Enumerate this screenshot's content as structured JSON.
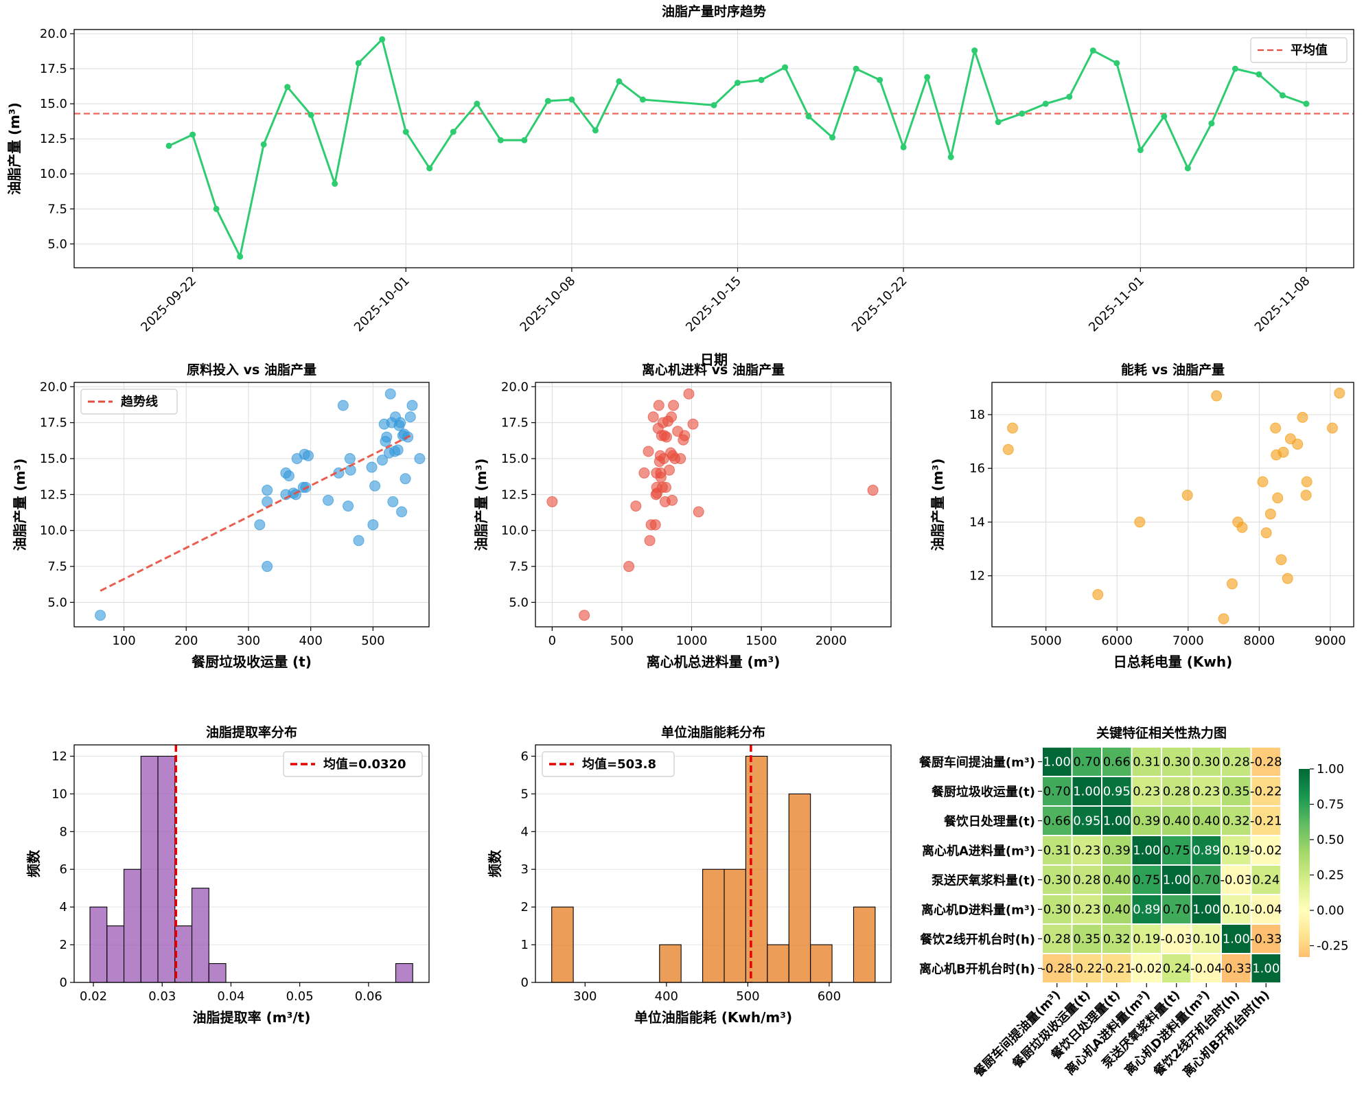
{
  "chart_data": [
    {
      "id": "ts",
      "type": "line",
      "title": "油脂产量时序趋势",
      "xlabel": "日期",
      "ylabel": "油脂产量 (m³)",
      "ylim": [
        3.3,
        20.3
      ],
      "yticks": [
        5.0,
        7.5,
        10.0,
        12.5,
        15.0,
        17.5,
        20.0
      ],
      "xticks": [
        "2025-09-22",
        "2025-10-01",
        "2025-10-08",
        "2025-10-15",
        "2025-10-22",
        "2025-11-01",
        "2025-11-08"
      ],
      "x": [
        "2025-09-21",
        "2025-09-22",
        "2025-09-23",
        "2025-09-24",
        "2025-09-25",
        "2025-09-26",
        "2025-09-27",
        "2025-09-28",
        "2025-09-29",
        "2025-09-30",
        "2025-10-01",
        "2025-10-02",
        "2025-10-03",
        "2025-10-04",
        "2025-10-05",
        "2025-10-06",
        "2025-10-07",
        "2025-10-08",
        "2025-10-09",
        "2025-10-10",
        "2025-10-11",
        "2025-10-14",
        "2025-10-15",
        "2025-10-16",
        "2025-10-17",
        "2025-10-18",
        "2025-10-19",
        "2025-10-20",
        "2025-10-21",
        "2025-10-22",
        "2025-10-23",
        "2025-10-24",
        "2025-10-25",
        "2025-10-26",
        "2025-10-27",
        "2025-10-28",
        "2025-10-29",
        "2025-10-30",
        "2025-10-31",
        "2025-11-01",
        "2025-11-02",
        "2025-11-03",
        "2025-11-04",
        "2025-11-05",
        "2025-11-06",
        "2025-11-07",
        "2025-11-08"
      ],
      "values": [
        12.0,
        12.8,
        7.5,
        4.1,
        12.1,
        16.2,
        14.2,
        9.3,
        17.9,
        19.6,
        13.0,
        10.4,
        13.0,
        15.0,
        12.4,
        12.4,
        15.2,
        15.3,
        13.1,
        16.6,
        15.3,
        14.9,
        16.5,
        16.7,
        17.6,
        14.1,
        12.6,
        17.5,
        16.7,
        11.9,
        16.9,
        11.2,
        18.8,
        13.7,
        14.3,
        15.0,
        15.5,
        18.8,
        17.9,
        11.7,
        14.1,
        10.4,
        13.6,
        17.5,
        17.1,
        15.6,
        15.0
      ],
      "mean": 14.3,
      "legend": [
        "平均值"
      ],
      "colors": {
        "line": "#2ecc71",
        "mean": "#e74c3c"
      }
    },
    {
      "id": "sc1",
      "type": "scatter",
      "title": "原料投入 vs 油脂产量",
      "xlabel": "餐厨垃圾收运量 (t)",
      "ylabel": "油脂产量 (m³)",
      "xlim": [
        20,
        590
      ],
      "ylim": [
        3.3,
        20.3
      ],
      "xticks": [
        100,
        200,
        300,
        400,
        500
      ],
      "yticks": [
        5.0,
        7.5,
        10.0,
        12.5,
        15.0,
        17.5,
        20.0
      ],
      "legend": [
        "趋势线"
      ],
      "trend": [
        [
          62,
          5.8
        ],
        [
          565,
          16.7
        ]
      ],
      "points": [
        [
          62,
          4.1
        ],
        [
          330,
          7.5
        ],
        [
          330,
          12.0
        ],
        [
          330,
          12.8
        ],
        [
          318,
          10.4
        ],
        [
          360,
          12.5
        ],
        [
          360,
          14.0
        ],
        [
          365,
          13.8
        ],
        [
          372,
          12.6
        ],
        [
          376,
          12.5
        ],
        [
          378,
          15.0
        ],
        [
          388,
          13.0
        ],
        [
          390,
          15.3
        ],
        [
          392,
          13.0
        ],
        [
          396,
          15.2
        ],
        [
          428,
          12.1
        ],
        [
          445,
          14.0
        ],
        [
          452,
          18.7
        ],
        [
          460,
          11.7
        ],
        [
          463,
          15.0
        ],
        [
          464,
          14.2
        ],
        [
          477,
          9.3
        ],
        [
          498,
          14.4
        ],
        [
          500,
          10.4
        ],
        [
          503,
          13.1
        ],
        [
          515,
          14.9
        ],
        [
          518,
          17.4
        ],
        [
          520,
          16.2
        ],
        [
          522,
          16.5
        ],
        [
          526,
          15.4
        ],
        [
          528,
          19.5
        ],
        [
          530,
          17.5
        ],
        [
          532,
          12.0
        ],
        [
          535,
          15.5
        ],
        [
          536,
          17.9
        ],
        [
          540,
          15.6
        ],
        [
          542,
          17.3
        ],
        [
          544,
          17.5
        ],
        [
          546,
          11.3
        ],
        [
          548,
          16.6
        ],
        [
          550,
          16.7
        ],
        [
          552,
          13.6
        ],
        [
          556,
          16.5
        ],
        [
          560,
          17.9
        ],
        [
          563,
          18.7
        ],
        [
          575,
          15.0
        ]
      ],
      "colors": {
        "point": "#3498db",
        "trend": "#e74c3c"
      }
    },
    {
      "id": "sc2",
      "type": "scatter",
      "title": "离心机进料 vs 油脂产量",
      "xlabel": "离心机总进料量 (m³)",
      "ylabel": "油脂产量 (m³)",
      "xlim": [
        -120,
        2430
      ],
      "ylim": [
        3.3,
        20.3
      ],
      "xticks": [
        0,
        500,
        1000,
        1500,
        2000
      ],
      "yticks": [
        5.0,
        7.5,
        10.0,
        12.5,
        15.0,
        17.5,
        20.0
      ],
      "points": [
        [
          0,
          12.0
        ],
        [
          230,
          4.1
        ],
        [
          550,
          7.5
        ],
        [
          600,
          11.7
        ],
        [
          660,
          14.0
        ],
        [
          690,
          15.5
        ],
        [
          700,
          9.3
        ],
        [
          710,
          10.4
        ],
        [
          725,
          17.9
        ],
        [
          740,
          10.4
        ],
        [
          745,
          12.5
        ],
        [
          748,
          14.0
        ],
        [
          750,
          13.0
        ],
        [
          752,
          12.6
        ],
        [
          760,
          17.1
        ],
        [
          765,
          18.7
        ],
        [
          770,
          14.8
        ],
        [
          775,
          15.2
        ],
        [
          778,
          14.0
        ],
        [
          780,
          13.7
        ],
        [
          785,
          16.6
        ],
        [
          790,
          13.0
        ],
        [
          795,
          17.5
        ],
        [
          800,
          15.0
        ],
        [
          805,
          16.6
        ],
        [
          810,
          12.0
        ],
        [
          815,
          13.0
        ],
        [
          820,
          16.5
        ],
        [
          830,
          17.6
        ],
        [
          840,
          14.2
        ],
        [
          850,
          15.4
        ],
        [
          855,
          17.9
        ],
        [
          860,
          12.1
        ],
        [
          865,
          15.2
        ],
        [
          870,
          18.7
        ],
        [
          880,
          15.0
        ],
        [
          900,
          16.9
        ],
        [
          920,
          15.0
        ],
        [
          940,
          16.3
        ],
        [
          950,
          16.6
        ],
        [
          980,
          19.5
        ],
        [
          1010,
          17.4
        ],
        [
          1050,
          11.3
        ],
        [
          2300,
          12.8
        ]
      ],
      "colors": {
        "point": "#e74c3c"
      }
    },
    {
      "id": "sc3",
      "type": "scatter",
      "title": "能耗 vs 油脂产量",
      "xlabel": "日总耗电量 (Kwh)",
      "ylabel": "油脂产量 (m³)",
      "xlim": [
        4240,
        9330
      ],
      "ylim": [
        10.1,
        19.2
      ],
      "xticks": [
        5000,
        6000,
        7000,
        8000,
        9000
      ],
      "yticks": [
        12,
        14,
        16,
        18
      ],
      "points": [
        [
          4470,
          16.7
        ],
        [
          4530,
          17.5
        ],
        [
          5730,
          11.3
        ],
        [
          6320,
          14.0
        ],
        [
          6990,
          15.0
        ],
        [
          7400,
          18.7
        ],
        [
          7500,
          10.4
        ],
        [
          7620,
          11.7
        ],
        [
          7700,
          14.0
        ],
        [
          7760,
          13.8
        ],
        [
          8050,
          15.5
        ],
        [
          8100,
          13.6
        ],
        [
          8160,
          14.3
        ],
        [
          8230,
          17.5
        ],
        [
          8240,
          16.5
        ],
        [
          8260,
          14.9
        ],
        [
          8310,
          12.6
        ],
        [
          8340,
          16.6
        ],
        [
          8400,
          11.9
        ],
        [
          8440,
          17.1
        ],
        [
          8540,
          16.9
        ],
        [
          8610,
          17.9
        ],
        [
          8660,
          15.0
        ],
        [
          8670,
          15.5
        ],
        [
          9030,
          17.5
        ],
        [
          9130,
          18.8
        ]
      ],
      "colors": {
        "point": "#f39c12"
      }
    },
    {
      "id": "h1",
      "type": "bar",
      "title": "油脂提取率分布",
      "xlabel": "油脂提取率 (m³/t)",
      "ylabel": "频数",
      "xlim": [
        0.0172,
        0.0688
      ],
      "ylim": [
        0,
        12.6
      ],
      "xticks": [
        "0.02",
        "0.03",
        "0.04",
        "0.05",
        "0.06",
        ""
      ],
      "xtick_values": [
        0.02,
        0.03,
        0.04,
        0.05,
        0.06
      ],
      "yticks": [
        0,
        2,
        4,
        6,
        8,
        10,
        12
      ],
      "bin_start": 0.0195,
      "bin_width": 0.00247,
      "values": [
        4,
        3,
        6,
        12,
        12,
        3,
        5,
        1,
        0,
        0,
        0,
        0,
        0,
        0,
        0,
        0,
        0,
        0,
        1
      ],
      "mean": 0.032,
      "legend": [
        "均值=0.0320"
      ],
      "colors": {
        "bar": "#9b59b6",
        "mean": "#e60000"
      }
    },
    {
      "id": "h2",
      "type": "bar",
      "title": "单位油脂能耗分布",
      "xlabel": "单位油脂能耗 (Kwh/m³)",
      "ylabel": "频数",
      "xlim": [
        239,
        676
      ],
      "ylim": [
        0,
        6.3
      ],
      "xtick_values": [
        300,
        400,
        500,
        600
      ],
      "yticks": [
        0,
        1,
        2,
        3,
        4,
        5,
        6
      ],
      "bin_start": 259,
      "bin_width": 26.5,
      "values": [
        2,
        0,
        0,
        0,
        0,
        1,
        0,
        3,
        3,
        6,
        1,
        5,
        1,
        0,
        2
      ],
      "mean": 503.8,
      "legend": [
        "均值=503.8"
      ],
      "colors": {
        "bar": "#e67e22",
        "mean": "#e60000"
      }
    },
    {
      "id": "hm",
      "type": "heatmap",
      "title": "关键特征相关性热力图",
      "labels": [
        "餐厨车间提油量(m³)",
        "餐厨垃圾收运量(t)",
        "餐饮日处理量(t)",
        "离心机A进料量(m³)",
        "泵送厌氧浆料量(t)",
        "离心机D进料量(m³)",
        "餐饮2线开机台时(h)",
        "离心机B开机台时(h)"
      ],
      "matrix": [
        [
          1.0,
          0.7,
          0.66,
          0.31,
          0.3,
          0.3,
          0.28,
          -0.28
        ],
        [
          0.7,
          1.0,
          0.95,
          0.23,
          0.28,
          0.23,
          0.35,
          -0.22
        ],
        [
          0.66,
          0.95,
          1.0,
          0.39,
          0.4,
          0.4,
          0.32,
          -0.21
        ],
        [
          0.31,
          0.23,
          0.39,
          1.0,
          0.75,
          0.89,
          0.19,
          -0.02
        ],
        [
          0.3,
          0.28,
          0.4,
          0.75,
          1.0,
          0.7,
          -0.03,
          0.24
        ],
        [
          0.3,
          0.23,
          0.4,
          0.89,
          0.7,
          1.0,
          0.1,
          -0.04
        ],
        [
          0.28,
          0.35,
          0.32,
          0.19,
          -0.03,
          0.1,
          1.0,
          -0.33
        ],
        [
          -0.28,
          -0.22,
          -0.21,
          -0.02,
          0.24,
          -0.04,
          -0.33,
          1.0
        ]
      ],
      "colorbar_ticks": [
        1.0,
        0.75,
        0.5,
        0.25,
        0.0,
        -0.25
      ],
      "colorbar_labels": [
        "1.00",
        "0.75",
        "0.50",
        "0.25",
        "0.00",
        "-0.25"
      ],
      "vmin": -0.33,
      "vmax": 1.0,
      "colormap": "RdYlGn"
    }
  ]
}
